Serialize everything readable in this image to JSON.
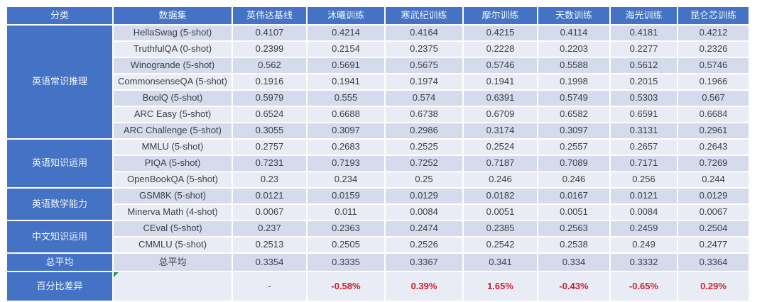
{
  "colors": {
    "header_blue": "#4472C4",
    "band_dark": "#d5dbec",
    "band_light": "#eaecf5",
    "value_text": "#3b4045",
    "negative_red": "#c5242f",
    "error_triangle_green": "#1f9d55",
    "grid_white": "#ffffff"
  },
  "table": {
    "columns": [
      "分类",
      "数据集",
      "英伟达基线",
      "沐曦训练",
      "寒武纪训练",
      "摩尔训练",
      "天数训练",
      "海光训练",
      "昆仑芯训练"
    ],
    "groups": [
      {
        "category": "英语常识推理",
        "rows": [
          {
            "dataset": "HellaSwag (5-shot)",
            "values": [
              "0.4107",
              "0.4214",
              "0.4164",
              "0.4215",
              "0.4114",
              "0.4181",
              "0.4212"
            ]
          },
          {
            "dataset": "TruthfulQA (0-shot)",
            "values": [
              "0.2399",
              "0.2154",
              "0.2375",
              "0.2228",
              "0.2203",
              "0.2277",
              "0.2326"
            ]
          },
          {
            "dataset": "Winogrande (5-shot)",
            "values": [
              "0.562",
              "0.5691",
              "0.5675",
              "0.5746",
              "0.5588",
              "0.5612",
              "0.5746"
            ]
          },
          {
            "dataset": "CommonsenseQA (5-shot)",
            "values": [
              "0.1916",
              "0.1941",
              "0.1974",
              "0.1941",
              "0.1998",
              "0.2015",
              "0.1966"
            ]
          },
          {
            "dataset": "BoolQ (5-shot)",
            "values": [
              "0.5979",
              "0.555",
              "0.574",
              "0.6391",
              "0.5749",
              "0.5303",
              "0.567"
            ]
          },
          {
            "dataset": "ARC Easy (5-shot)",
            "values": [
              "0.6524",
              "0.6688",
              "0.6738",
              "0.6709",
              "0.6582",
              "0.6591",
              "0.6684"
            ]
          },
          {
            "dataset": "ARC Challenge (5-shot)",
            "values": [
              "0.3055",
              "0.3097",
              "0.2986",
              "0.3174",
              "0.3097",
              "0.3131",
              "0.2961"
            ]
          }
        ]
      },
      {
        "category": "英语知识运用",
        "rows": [
          {
            "dataset": "MMLU (5-shot)",
            "values": [
              "0.2757",
              "0.2683",
              "0.2525",
              "0.2524",
              "0.2557",
              "0.2657",
              "0.2643"
            ]
          },
          {
            "dataset": "PIQA (5-shot)",
            "values": [
              "0.7231",
              "0.7193",
              "0.7252",
              "0.7187",
              "0.7089",
              "0.7171",
              "0.7269"
            ]
          },
          {
            "dataset": "OpenBookQA (5-shot)",
            "values": [
              "0.23",
              "0.234",
              "0.25",
              "0.246",
              "0.246",
              "0.256",
              "0.244"
            ]
          }
        ]
      },
      {
        "category": "英语数学能力",
        "rows": [
          {
            "dataset": "GSM8K (5-shot)",
            "values": [
              "0.0121",
              "0.0159",
              "0.0129",
              "0.0182",
              "0.0167",
              "0.0121",
              "0.0129"
            ]
          },
          {
            "dataset": "Minerva Math (4-shot)",
            "values": [
              "0.0067",
              "0.011",
              "0.0084",
              "0.0051",
              "0.0051",
              "0.0084",
              "0.0067"
            ]
          }
        ]
      },
      {
        "category": "中文知识运用",
        "rows": [
          {
            "dataset": "CEval (5-shot)",
            "values": [
              "0.237",
              "0.2363",
              "0.2474",
              "0.2385",
              "0.2563",
              "0.2459",
              "0.2504"
            ]
          },
          {
            "dataset": "CMMLU (5-shot)",
            "values": [
              "0.2513",
              "0.2505",
              "0.2526",
              "0.2542",
              "0.2538",
              "0.249",
              "0.2477"
            ]
          }
        ]
      },
      {
        "category": "总平均",
        "rows": [
          {
            "dataset": "总平均",
            "values": [
              "0.3354",
              "0.3335",
              "0.3367",
              "0.341",
              "0.334",
              "0.3332",
              "0.3364"
            ]
          }
        ]
      },
      {
        "category": "百分比差异",
        "rows": [
          {
            "dataset": "",
            "percent": true,
            "error_indicator": true,
            "values": [
              "-",
              "-0.58%",
              "0.39%",
              "1.65%",
              "-0.43%",
              "-0.65%",
              "0.29%"
            ]
          }
        ]
      }
    ]
  }
}
